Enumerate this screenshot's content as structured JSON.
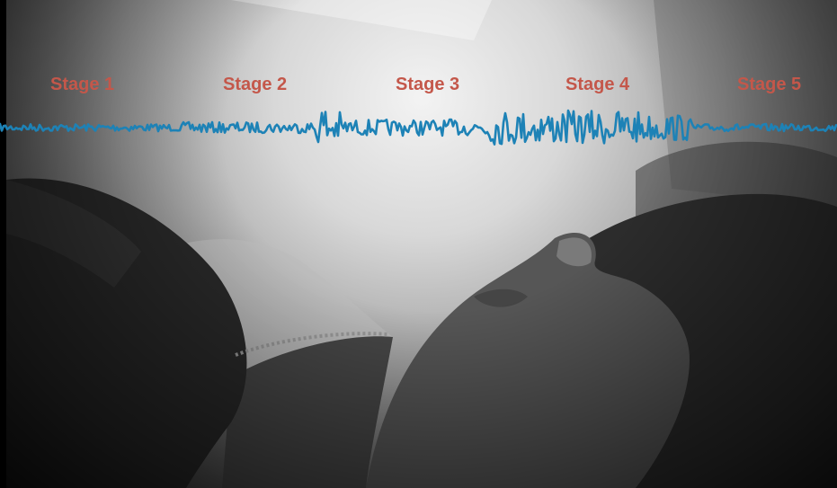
{
  "overlay": {
    "stages": [
      {
        "label": "Stage 1"
      },
      {
        "label": "Stage 2"
      },
      {
        "label": "Stage 3"
      },
      {
        "label": "Stage 4"
      },
      {
        "label": "Stage 5"
      }
    ]
  },
  "colors": {
    "stage_label": "#c4574a",
    "waveform": "#1d82b6"
  },
  "scene": {
    "description_free": true
  }
}
